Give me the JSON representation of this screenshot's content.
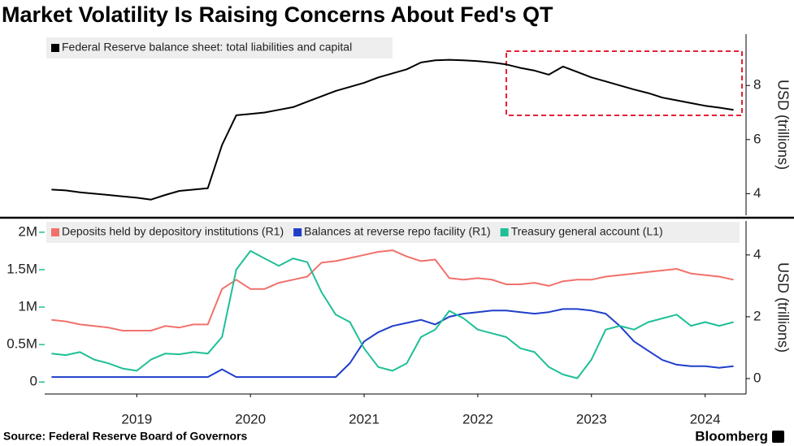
{
  "chart_data": [
    {
      "type": "line",
      "title": "Market Volatility Is Raising Concerns About Fed's QT",
      "ylabel": "USD (trillions)",
      "x": [
        2018.75,
        2018.875,
        2019,
        2019.125,
        2019.25,
        2019.375,
        2019.5,
        2019.625,
        2019.75,
        2019.875,
        2020,
        2020.125,
        2020.25,
        2020.375,
        2020.5,
        2020.625,
        2020.75,
        2020.875,
        2021,
        2021.125,
        2021.25,
        2021.375,
        2021.5,
        2021.625,
        2021.75,
        2021.875,
        2022,
        2022.125,
        2022.25,
        2022.375,
        2022.5,
        2022.625,
        2022.75,
        2022.875,
        2023,
        2023.125,
        2023.25,
        2023.375,
        2023.5,
        2023.625,
        2023.75,
        2023.875,
        2024,
        2024.125,
        2024.25,
        2024.375,
        2024.5,
        2024.625,
        2024.75
      ],
      "xlim": [
        2018.69,
        2024.86
      ],
      "ylim": [
        3.2,
        9.9
      ],
      "yticks": [
        4,
        6,
        8
      ],
      "series": [
        {
          "name": "Federal Reserve balance sheet: total liabilities and capital",
          "color": "#000000",
          "values": [
            4.15,
            4.12,
            4.05,
            4.0,
            3.95,
            3.9,
            3.85,
            3.78,
            3.95,
            4.1,
            4.15,
            4.2,
            5.8,
            6.9,
            6.95,
            7.0,
            7.1,
            7.2,
            7.4,
            7.6,
            7.8,
            7.95,
            8.1,
            8.3,
            8.45,
            8.6,
            8.85,
            8.93,
            8.95,
            8.93,
            8.9,
            8.85,
            8.78,
            8.65,
            8.55,
            8.4,
            8.7,
            8.5,
            8.3,
            8.15,
            8.0,
            7.85,
            7.72,
            7.55,
            7.45,
            7.35,
            7.25,
            7.18,
            7.1
          ]
        }
      ]
    },
    {
      "type": "line",
      "y2label": "USD (trillions)",
      "source": "Source: Federal Reserve Board of Governors",
      "credit": "Bloomberg",
      "x": [
        2018.75,
        2018.875,
        2019,
        2019.125,
        2019.25,
        2019.375,
        2019.5,
        2019.625,
        2019.75,
        2019.875,
        2020,
        2020.125,
        2020.25,
        2020.375,
        2020.5,
        2020.625,
        2020.75,
        2020.875,
        2021,
        2021.125,
        2021.25,
        2021.375,
        2021.5,
        2021.625,
        2021.75,
        2021.875,
        2022,
        2022.125,
        2022.25,
        2022.375,
        2022.5,
        2022.625,
        2022.75,
        2022.875,
        2023,
        2023.125,
        2023.25,
        2023.375,
        2023.5,
        2023.625,
        2023.75,
        2023.875,
        2024,
        2024.125,
        2024.25,
        2024.375,
        2024.5,
        2024.625,
        2024.75
      ],
      "xlim": [
        2018.69,
        2024.86
      ],
      "xticks": [
        {
          "value": 2019.5,
          "label": "2019"
        },
        {
          "value": 2020.5,
          "label": "2020"
        },
        {
          "value": 2021.5,
          "label": "2021"
        },
        {
          "value": 2022.5,
          "label": "2022"
        },
        {
          "value": 2023.5,
          "label": "2023"
        },
        {
          "value": 2024.5,
          "label": "2024"
        }
      ],
      "ylim": [
        -160000,
        2150000
      ],
      "yticks": [
        0,
        {
          "value": 500000,
          "label": "0.5M"
        },
        {
          "value": 1000000,
          "label": "1M"
        },
        {
          "value": 1500000,
          "label": "1.5M"
        },
        {
          "value": 2000000,
          "label": "2M"
        }
      ],
      "y2lim": [
        -0.5,
        5.1
      ],
      "y2ticks": [
        0,
        2,
        4
      ],
      "series": [
        {
          "name": "Deposits held by depository institutions (R1)",
          "color": "#f2716b",
          "axis": "y2",
          "values": [
            1.9,
            1.85,
            1.75,
            1.7,
            1.65,
            1.55,
            1.55,
            1.55,
            1.7,
            1.65,
            1.75,
            1.75,
            2.9,
            3.2,
            2.9,
            2.9,
            3.1,
            3.2,
            3.3,
            3.75,
            3.8,
            3.9,
            4.0,
            4.1,
            4.15,
            3.95,
            3.8,
            3.85,
            3.25,
            3.2,
            3.25,
            3.2,
            3.05,
            3.05,
            3.1,
            3.0,
            3.15,
            3.2,
            3.2,
            3.3,
            3.35,
            3.4,
            3.45,
            3.5,
            3.55,
            3.4,
            3.35,
            3.3,
            3.2
          ]
        },
        {
          "name": "Balances at reverse repo facility (R1)",
          "color": "#1f3ec9",
          "axis": "y2",
          "values": [
            0.05,
            0.05,
            0.05,
            0.05,
            0.05,
            0.05,
            0.05,
            0.05,
            0.05,
            0.05,
            0.05,
            0.05,
            0.3,
            0.05,
            0.05,
            0.05,
            0.05,
            0.05,
            0.05,
            0.05,
            0.05,
            0.5,
            1.2,
            1.5,
            1.7,
            1.8,
            1.9,
            1.75,
            2.0,
            2.1,
            2.15,
            2.2,
            2.2,
            2.15,
            2.1,
            2.15,
            2.25,
            2.25,
            2.2,
            2.1,
            1.7,
            1.2,
            0.9,
            0.6,
            0.45,
            0.4,
            0.4,
            0.35,
            0.4
          ]
        },
        {
          "name": "Treasury general account (L1)",
          "color": "#1fbf97",
          "axis": "y",
          "values": [
            380000,
            360000,
            400000,
            300000,
            250000,
            180000,
            150000,
            300000,
            380000,
            370000,
            400000,
            380000,
            600000,
            1500000,
            1750000,
            1650000,
            1550000,
            1650000,
            1600000,
            1200000,
            900000,
            800000,
            450000,
            200000,
            150000,
            250000,
            600000,
            700000,
            950000,
            850000,
            700000,
            650000,
            600000,
            450000,
            400000,
            200000,
            100000,
            50000,
            300000,
            700000,
            750000,
            700000,
            800000,
            850000,
            900000,
            750000,
            800000,
            750000,
            800000
          ]
        }
      ]
    }
  ]
}
